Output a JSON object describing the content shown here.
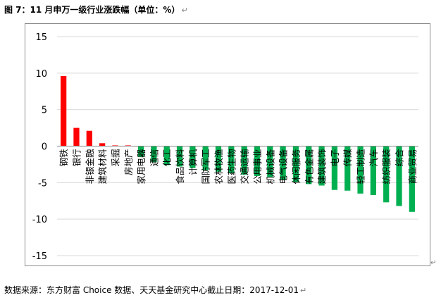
{
  "caption": {
    "text": "图 7：11 月申万一级行业涨跌幅（单位：%）",
    "mark": "↵"
  },
  "source": {
    "text": "数据来源：东方财富 Choice 数据、天天基金研究中心截止日期：2017-12-01",
    "mark": "↵"
  },
  "colors": {
    "positive": "#ff0000",
    "negative": "#00b050",
    "grid": "#d9d9d9",
    "axis": "#868686"
  },
  "chart_data": {
    "type": "bar",
    "title": "",
    "xlabel": "",
    "ylabel": "",
    "ylim": [
      -15,
      15
    ],
    "yticks": [
      15,
      10,
      5,
      0,
      -5,
      -10,
      -15
    ],
    "grid": true,
    "categories": [
      "钢铁",
      "银行",
      "非银金融",
      "建筑材料",
      "采掘",
      "房地产",
      "家用电器",
      "通信",
      "化工",
      "食品饮料",
      "计算机",
      "国防军工",
      "农林牧渔",
      "医药生物",
      "交通运输",
      "公用事业",
      "机械设备",
      "电气设备",
      "休闲服务",
      "有色金属",
      "建筑装饰",
      "电子",
      "传媒",
      "轻工制造",
      "汽车",
      "纺织服装",
      "综合",
      "商业贸易"
    ],
    "values": [
      9.6,
      2.5,
      2.1,
      0.4,
      0.1,
      0.1,
      -1.5,
      -2.2,
      -2.6,
      -2.8,
      -3.0,
      -3.3,
      -3.5,
      -3.7,
      -3.9,
      -4.1,
      -4.3,
      -4.6,
      -4.9,
      -5.2,
      -5.4,
      -6.0,
      -6.1,
      -6.5,
      -6.7,
      -7.7,
      -8.2,
      -9.0
    ]
  }
}
